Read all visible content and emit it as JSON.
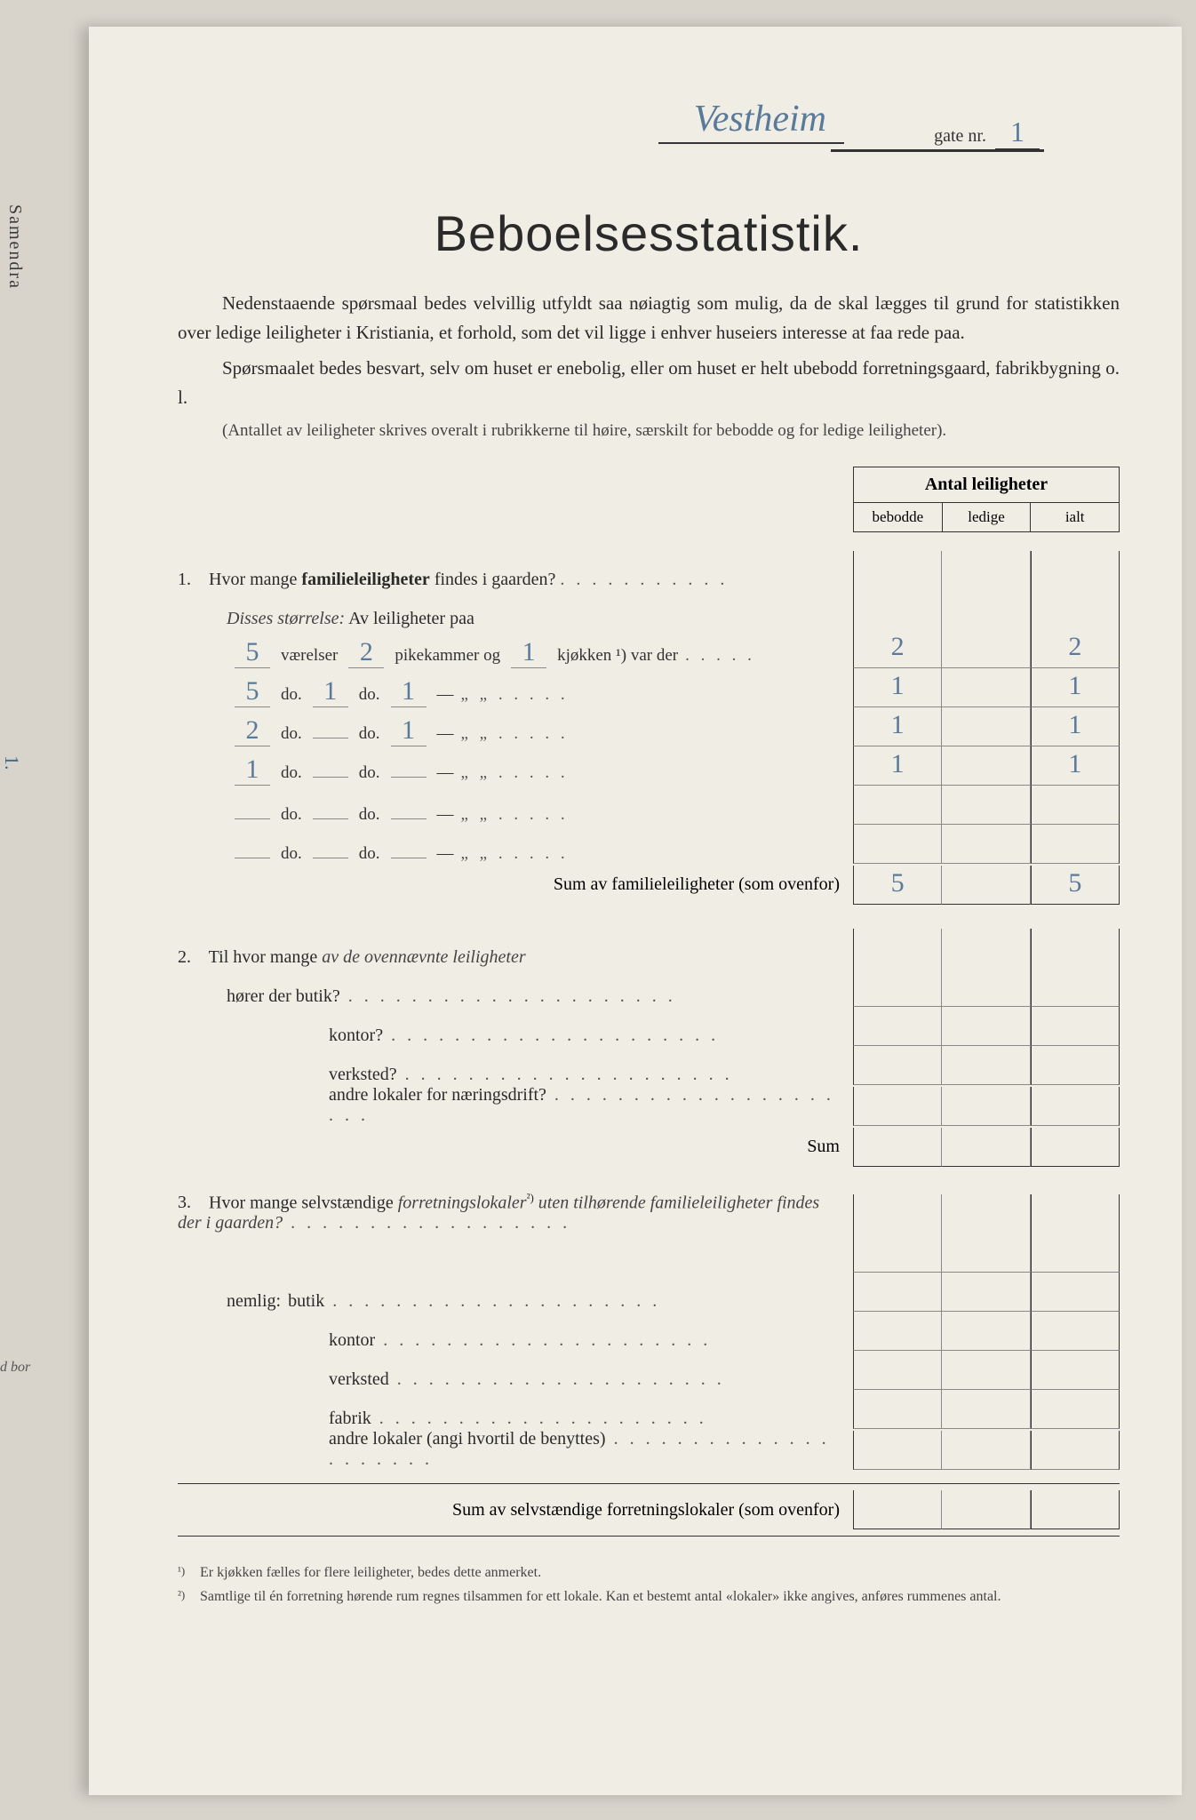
{
  "spine": "Samendra",
  "edge1": "d bor",
  "edge2": "1.",
  "header": {
    "street_handwritten": "Vestheim",
    "gate_label": "gate nr.",
    "gate_nr": "1"
  },
  "title": "Beboelsesstatistik.",
  "intro1": "Nedenstaaende spørsmaal bedes velvillig utfyldt saa nøiagtig som mulig, da de skal lægges til grund for statistikken over ledige leiligheter i Kristiania, et forhold, som det vil ligge i enhver huseiers interesse at faa rede paa.",
  "intro2": "Spørsmaalet bedes besvart, selv om huset er enebolig, eller om huset er helt ubebodd forretningsgaard, fabrikbygning o. l.",
  "intro3": "(Antallet av leiligheter skrives overalt i rubrikkerne til høire, særskilt for bebodde og for ledige leiligheter).",
  "table": {
    "header_title": "Antal leiligheter",
    "cols": [
      "bebodde",
      "ledige",
      "ialt"
    ]
  },
  "q1": {
    "text": "Hvor mange ",
    "bold": "familieleiligheter",
    "text2": " findes i gaarden?",
    "disses": "Disses størrelse:",
    "av": " Av leiligheter paa",
    "rows": [
      {
        "v": "5",
        "p": "2",
        "k": "1",
        "labels": [
          "værelser",
          "pikekammer og",
          "kjøkken ¹) var der"
        ],
        "b": "2",
        "l": "",
        "i": "2"
      },
      {
        "v": "5",
        "p": "1",
        "k": "1",
        "labels": [
          "do.",
          "do.",
          "—"
        ],
        "b": "1",
        "l": "",
        "i": "1"
      },
      {
        "v": "2",
        "p": "",
        "k": "1",
        "labels": [
          "do.",
          "do.",
          "—"
        ],
        "b": "1",
        "l": "",
        "i": "1"
      },
      {
        "v": "1",
        "p": "",
        "k": "",
        "labels": [
          "do.",
          "do.",
          "—"
        ],
        "b": "1",
        "l": "",
        "i": "1"
      },
      {
        "v": "",
        "p": "",
        "k": "",
        "labels": [
          "do.",
          "do.",
          "—"
        ],
        "b": "",
        "l": "",
        "i": ""
      },
      {
        "v": "",
        "p": "",
        "k": "",
        "labels": [
          "do.",
          "do.",
          "—"
        ],
        "b": "",
        "l": "",
        "i": ""
      }
    ],
    "sum_label": "Sum av familieleiligheter",
    "sum_paren": " (som ovenfor)",
    "sum_b": "5",
    "sum_l": "",
    "sum_i": "5"
  },
  "q2": {
    "line1a": "Til hvor mange ",
    "line1b": "av de ovennævnte leiligheter",
    "items": [
      "hører der butik?",
      "kontor?",
      "verksted?",
      "andre lokaler for næringsdrift?"
    ],
    "sum": "Sum"
  },
  "q3": {
    "line1": "Hvor mange selvstændige ",
    "ital": "forretningslokaler",
    "sup": "²)",
    "line1b": " uten tilhørende familieleiligheter findes der i gaarden?",
    "nemlig": "nemlig:",
    "items": [
      "butik",
      "kontor",
      "verksted",
      "fabrik",
      "andre lokaler (angi hvortil de benyttes)"
    ],
    "sum_label": "Sum av selvstændige forretningslokaler",
    "sum_paren": " (som ovenfor)"
  },
  "footnotes": [
    {
      "n": "¹)",
      "t": "Er kjøkken fælles for flere leiligheter, bedes dette anmerket."
    },
    {
      "n": "²)",
      "t": "Samtlige til én forretning hørende rum regnes tilsammen for ett lokale. Kan et bestemt antal «lokaler» ikke angives, anføres rummenes antal."
    }
  ]
}
